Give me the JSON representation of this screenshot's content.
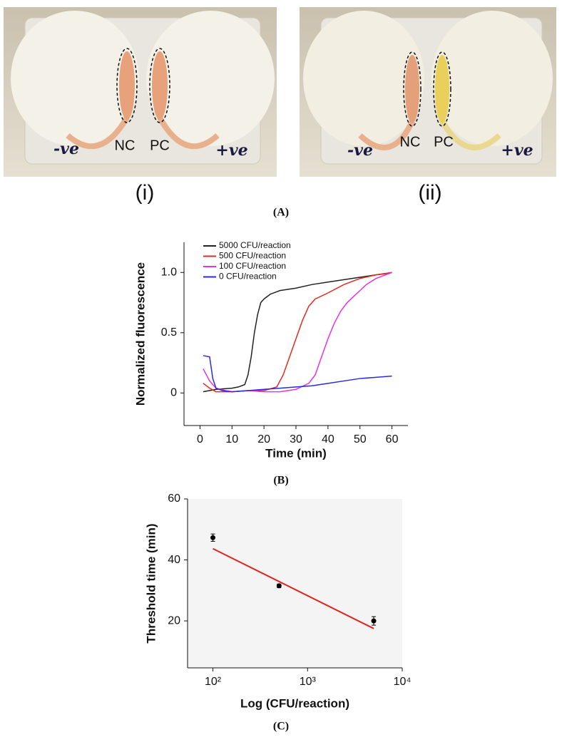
{
  "panel_a": {
    "caption": "(A)",
    "photos": [
      {
        "label": "(i)",
        "markers": [
          "NC",
          "PC"
        ],
        "notes": [
          "-ve",
          "+ve"
        ]
      },
      {
        "label": "(ii)",
        "markers": [
          "NC",
          "PC"
        ],
        "notes": [
          "-ve",
          "+ve"
        ]
      }
    ]
  },
  "chart_data": [
    {
      "type": "line",
      "caption": "(B)",
      "x_label": "Time (min)",
      "y_label": "Normalized fluorescence",
      "xlim": [
        -5,
        65
      ],
      "ylim": [
        -0.27,
        1.25
      ],
      "xticks": [
        0,
        10,
        20,
        30,
        40,
        50,
        60
      ],
      "yticks": [
        0,
        0.5,
        {
          "value": 1,
          "label": "1.0"
        }
      ],
      "legend": "upper left",
      "series": [
        {
          "name": "5000 CFU/reaction",
          "color": "#222222",
          "x": [
            1,
            5,
            10,
            12,
            14,
            15,
            16,
            17,
            18,
            19,
            20,
            22,
            25,
            30,
            35,
            40,
            45,
            50,
            55,
            58,
            60
          ],
          "values": [
            0.01,
            0.03,
            0.04,
            0.05,
            0.07,
            0.15,
            0.3,
            0.5,
            0.65,
            0.75,
            0.78,
            0.82,
            0.85,
            0.87,
            0.9,
            0.92,
            0.94,
            0.96,
            0.98,
            0.99,
            1.0
          ]
        },
        {
          "name": "500 CFU/reaction",
          "color": "#e8281e",
          "x": [
            1,
            3,
            5,
            10,
            15,
            20,
            24,
            26,
            28,
            30,
            32,
            34,
            36,
            40,
            45,
            50,
            55,
            60
          ],
          "values": [
            0.08,
            0.04,
            0.01,
            0.01,
            0.02,
            0.02,
            0.05,
            0.15,
            0.3,
            0.45,
            0.6,
            0.72,
            0.78,
            0.83,
            0.9,
            0.95,
            0.98,
            1.0
          ]
        },
        {
          "name": "100 CFU/reaction",
          "color": "#e832e0",
          "x": [
            1,
            3,
            5,
            8,
            10,
            15,
            20,
            25,
            30,
            34,
            36,
            38,
            40,
            42,
            44,
            46,
            48,
            50,
            52,
            55,
            58,
            60
          ],
          "values": [
            0.2,
            0.1,
            0.04,
            0.02,
            0.01,
            0.02,
            0.01,
            0.01,
            0.03,
            0.08,
            0.15,
            0.3,
            0.45,
            0.58,
            0.68,
            0.75,
            0.8,
            0.85,
            0.9,
            0.95,
            0.98,
            1.0
          ]
        },
        {
          "name": "0 CFU/reaction",
          "color": "#2a2ae0",
          "x": [
            1,
            3,
            4,
            5,
            7,
            10,
            15,
            20,
            25,
            30,
            35,
            40,
            45,
            50,
            55,
            60
          ],
          "values": [
            0.31,
            0.3,
            0.12,
            0.04,
            0.02,
            0.01,
            0.02,
            0.03,
            0.04,
            0.05,
            0.06,
            0.08,
            0.1,
            0.12,
            0.13,
            0.14
          ]
        }
      ]
    },
    {
      "type": "scatter",
      "caption": "(C)",
      "x_label": "Log (CFU/reaction)",
      "y_label": "Threshold time (min)",
      "x_scale": "log",
      "xlim": [
        54,
        10000
      ],
      "ylim": [
        4.6,
        60
      ],
      "xticks": [
        {
          "value": 100,
          "label": "10²"
        },
        {
          "value": 1000,
          "label": "10³"
        },
        {
          "value": 10000,
          "label": "10⁴"
        }
      ],
      "yticks": [
        20,
        40,
        60
      ],
      "points": {
        "color": "#000000",
        "x": [
          100,
          500,
          5000
        ],
        "values": [
          47.3,
          31.5,
          20
        ],
        "errors": [
          1.2,
          0.6,
          1.4
        ]
      },
      "fit_line": {
        "color": "#e8201c",
        "x": [
          100,
          5000
        ],
        "values": [
          43.7,
          17.5
        ]
      }
    }
  ]
}
